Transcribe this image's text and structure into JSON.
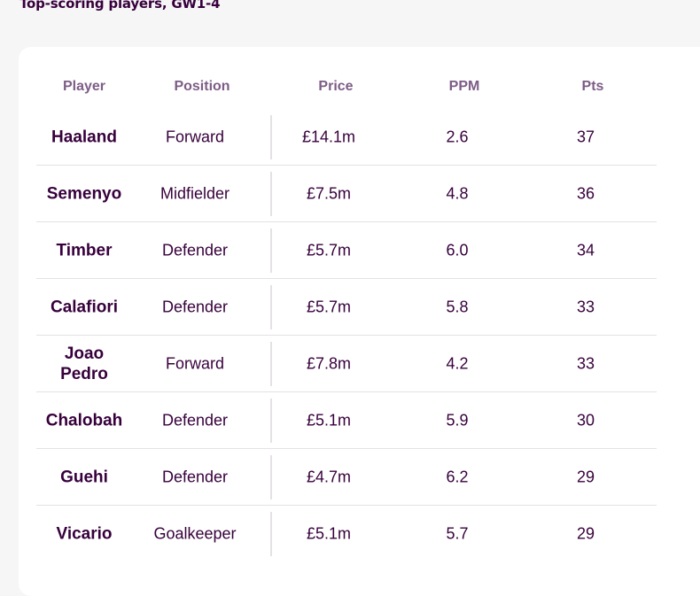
{
  "heading": "Top-scoring players, GW1-4",
  "columns": {
    "player": "Player",
    "position": "Position",
    "price": "Price",
    "ppm": "PPM",
    "pts": "Pts"
  },
  "players": [
    {
      "name": "Haaland",
      "position": "Forward",
      "price": "£14.1m",
      "ppm": "2.6",
      "pts": "37"
    },
    {
      "name": "Semenyo",
      "position": "Midfielder",
      "price": "£7.5m",
      "ppm": "4.8",
      "pts": "36"
    },
    {
      "name": "Timber",
      "position": "Defender",
      "price": "£5.7m",
      "ppm": "6.0",
      "pts": "34"
    },
    {
      "name": "Calafiori",
      "position": "Defender",
      "price": "£5.7m",
      "ppm": "5.8",
      "pts": "33"
    },
    {
      "name": "Joao Pedro",
      "position": "Forward",
      "price": "£7.8m",
      "ppm": "4.2",
      "pts": "33"
    },
    {
      "name": "Chalobah",
      "position": "Defender",
      "price": "£5.1m",
      "ppm": "5.9",
      "pts": "30"
    },
    {
      "name": "Guehi",
      "position": "Defender",
      "price": "£4.7m",
      "ppm": "6.2",
      "pts": "29"
    },
    {
      "name": "Vicario",
      "position": "Goalkeeper",
      "price": "£5.1m",
      "ppm": "5.7",
      "pts": "29"
    }
  ],
  "colors": {
    "text": "#37003c",
    "header_text": "#7d5d86",
    "divider": "#e4e1e5",
    "background": "#f7f6f7",
    "card": "#ffffff"
  }
}
